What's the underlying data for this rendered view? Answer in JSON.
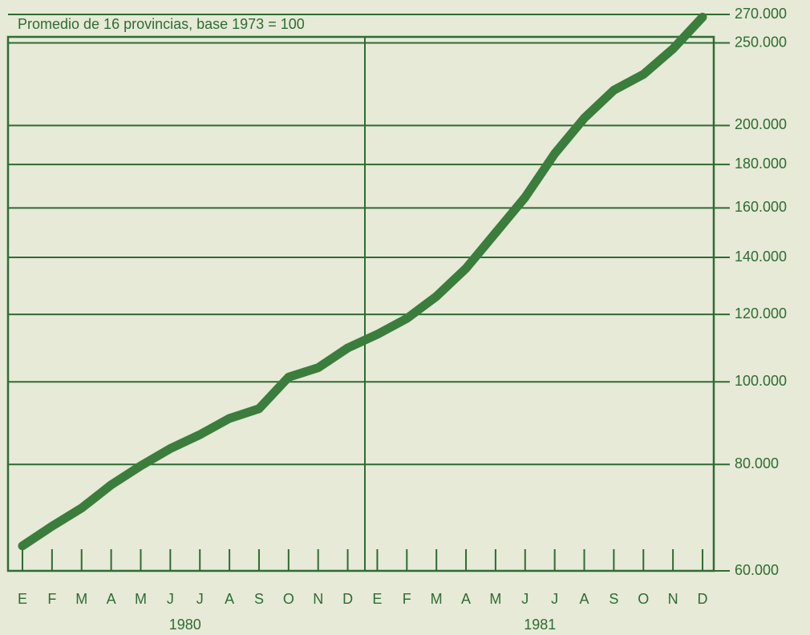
{
  "chart_data": {
    "type": "line",
    "title": "Promedio de 16 provincias, base 1973 = 100",
    "categories": [
      "E",
      "F",
      "M",
      "A",
      "M",
      "J",
      "J",
      "A",
      "S",
      "O",
      "N",
      "D",
      "E",
      "F",
      "M",
      "A",
      "M",
      "J",
      "J",
      "A",
      "S",
      "O",
      "N",
      "D"
    ],
    "year_labels": [
      "1980",
      "1981"
    ],
    "series": [
      {
        "name": "Promedio",
        "color": "#3b7d3c",
        "values": [
          64200,
          67700,
          71100,
          75700,
          79700,
          83500,
          86700,
          90600,
          93000,
          101300,
          103900,
          109600,
          113700,
          118700,
          126000,
          135900,
          149600,
          164700,
          185300,
          204000,
          220000,
          229600,
          246000,
          268000
        ]
      }
    ],
    "yscale": "log",
    "ylim": [
      60000,
      270000
    ],
    "yticks": [
      {
        "value": 60000,
        "label": "60.000"
      },
      {
        "value": 80000,
        "label": "80.000"
      },
      {
        "value": 100000,
        "label": "100.000"
      },
      {
        "value": 120000,
        "label": "120.000"
      },
      {
        "value": 140000,
        "label": "140.000"
      },
      {
        "value": 160000,
        "label": "160.000"
      },
      {
        "value": 180000,
        "label": "180.000"
      },
      {
        "value": 200000,
        "label": "200.000"
      },
      {
        "value": 250000,
        "label": "250.000"
      },
      {
        "value": 270000,
        "label": "270.000"
      }
    ],
    "grid": true
  }
}
